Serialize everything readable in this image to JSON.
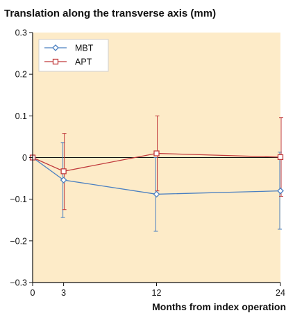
{
  "chart_data": {
    "type": "line",
    "title": "Translation along the transverse axis (mm)",
    "xlabel": "Months from index operation",
    "ylabel": "",
    "x": [
      0,
      3,
      12,
      24
    ],
    "xlim": [
      0,
      24
    ],
    "ylim": [
      -0.3,
      0.3
    ],
    "x_ticks": [
      "0",
      "3",
      "12",
      "24"
    ],
    "y_ticks": [
      "0.3",
      "0.2",
      "0.1",
      "0",
      "−0.1",
      "−0.2",
      "−0.3"
    ],
    "y_tick_values": [
      0.3,
      0.2,
      0.1,
      0,
      -0.1,
      -0.2,
      -0.3
    ],
    "legend_position": "top-left",
    "grid": false,
    "background_color": "#fdebc8",
    "series": [
      {
        "name": "MBT",
        "color": "#4a7fc1",
        "marker": "diamond",
        "values": [
          0,
          -0.054,
          -0.088,
          -0.08
        ],
        "error_upper": [
          0,
          0.036,
          0.0,
          0.013
        ],
        "error_lower": [
          0,
          -0.144,
          -0.177,
          -0.172
        ]
      },
      {
        "name": "APT",
        "color": "#c0393b",
        "marker": "square",
        "values": [
          0,
          -0.033,
          0.01,
          0.001
        ],
        "error_upper": [
          0,
          0.058,
          0.1,
          0.096
        ],
        "error_lower": [
          0,
          -0.125,
          -0.08,
          -0.093
        ]
      }
    ]
  }
}
